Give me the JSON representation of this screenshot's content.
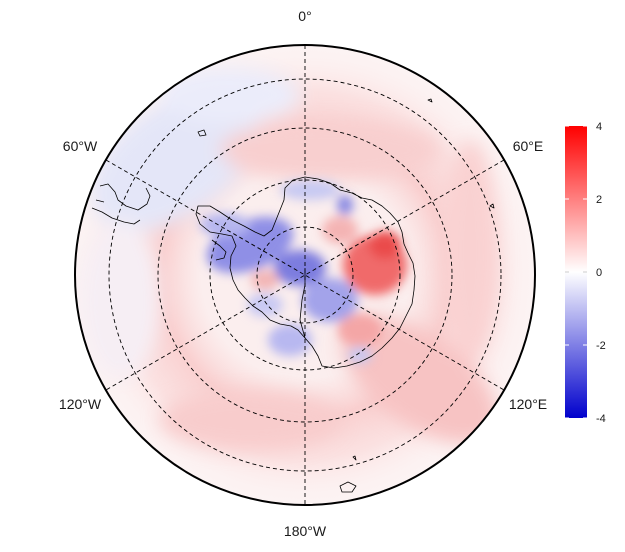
{
  "map": {
    "projection": "south-polar-stereographic",
    "longitude_labels": {
      "top": "0°",
      "bottom": "180°W",
      "upper_left": "60°W",
      "upper_right": "60°E",
      "lower_left": "120°W",
      "lower_right": "120°E"
    },
    "meridian_lines": "dashed",
    "latitude_circles": "dashed",
    "coastlines": "Antarctica, South America tip, Southern Ocean islands"
  },
  "colorbar": {
    "ticks": [
      "4",
      "2",
      "0",
      "-2",
      "-4"
    ],
    "max_color": "#ff0000",
    "mid_color": "#ffffff",
    "min_color": "#0000cc"
  },
  "colors": {
    "positive": "#ff0000",
    "negative": "#0000cc",
    "neutral": "#ffffff",
    "frame": "#000000"
  }
}
